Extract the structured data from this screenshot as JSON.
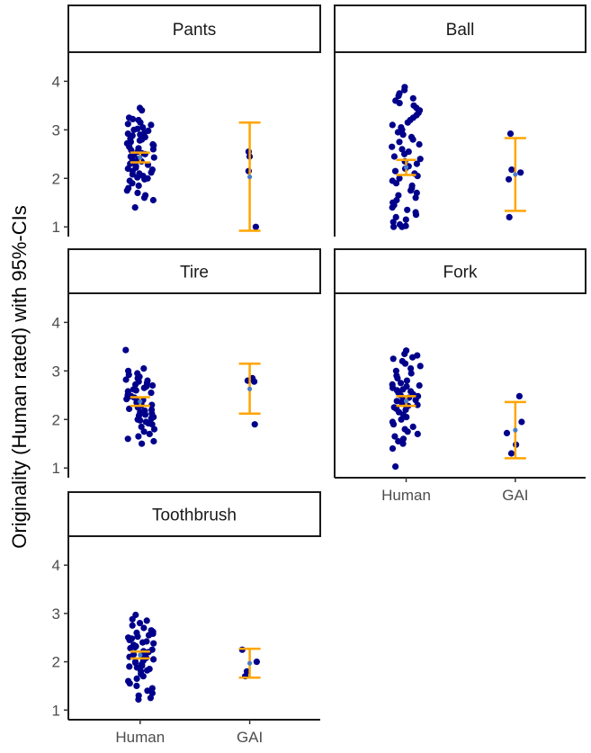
{
  "chart_data": {
    "type": "scatter",
    "ylabel": "Originality (Human rated) with 95%-CIs",
    "xlabel": "",
    "categories": [
      "Human",
      "GAI"
    ],
    "yticks": [
      1,
      2,
      3,
      4
    ],
    "ylim": [
      0.8,
      4.6
    ],
    "colors": {
      "points": "#00008b",
      "ci": "#ffa500",
      "mean": "#4a7ec8"
    },
    "facets": [
      {
        "name": "Pants",
        "groups": [
          {
            "category": "Human",
            "mean": 2.43,
            "ci": [
              2.33,
              2.53
            ],
            "points": [
              3.45,
              3.4,
              3.25,
              3.22,
              3.2,
              3.15,
              3.12,
              3.1,
              3.05,
              3.02,
              3.0,
              2.98,
              2.95,
              2.92,
              2.9,
              2.88,
              2.85,
              2.82,
              2.8,
              2.78,
              2.75,
              2.72,
              2.7,
              2.68,
              2.65,
              2.62,
              2.6,
              2.58,
              2.55,
              2.52,
              2.5,
              2.48,
              2.45,
              2.43,
              2.4,
              2.38,
              2.35,
              2.33,
              2.3,
              2.28,
              2.25,
              2.22,
              2.2,
              2.18,
              2.15,
              2.12,
              2.1,
              2.08,
              2.05,
              2.02,
              2.0,
              1.98,
              1.95,
              1.9,
              1.85,
              1.8,
              1.75,
              1.7,
              1.65,
              1.6,
              1.55,
              1.4
            ]
          },
          {
            "category": "GAI",
            "mean": 2.03,
            "ci": [
              0.92,
              3.15
            ],
            "points": [
              2.55,
              2.45,
              2.15,
              1.0
            ]
          }
        ]
      },
      {
        "name": "Ball",
        "groups": [
          {
            "category": "Human",
            "mean": 2.23,
            "ci": [
              2.07,
              2.38
            ],
            "points": [
              3.88,
              3.82,
              3.75,
              3.7,
              3.65,
              3.6,
              3.55,
              3.5,
              3.45,
              3.4,
              3.35,
              3.3,
              3.25,
              3.2,
              3.15,
              3.1,
              3.05,
              3.0,
              2.95,
              2.9,
              2.85,
              2.8,
              2.75,
              2.7,
              2.65,
              2.6,
              2.55,
              2.5,
              2.45,
              2.4,
              2.35,
              2.3,
              2.25,
              2.2,
              2.15,
              2.1,
              2.05,
              2.0,
              1.95,
              1.9,
              1.85,
              1.8,
              1.75,
              1.7,
              1.65,
              1.6,
              1.55,
              1.5,
              1.45,
              1.4,
              1.35,
              1.3,
              1.25,
              1.2,
              1.15,
              1.1,
              1.05,
              1.02,
              1.0,
              1.0
            ]
          },
          {
            "category": "GAI",
            "mean": 2.08,
            "ci": [
              1.33,
              2.83
            ],
            "points": [
              2.92,
              2.18,
              2.12,
              1.98,
              1.2
            ]
          }
        ]
      },
      {
        "name": "Tire",
        "groups": [
          {
            "category": "Human",
            "mean": 2.37,
            "ci": [
              2.28,
              2.46
            ],
            "points": [
              3.43,
              3.05,
              3.0,
              2.95,
              2.92,
              2.88,
              2.85,
              2.82,
              2.8,
              2.78,
              2.75,
              2.72,
              2.7,
              2.68,
              2.65,
              2.62,
              2.6,
              2.58,
              2.55,
              2.52,
              2.5,
              2.48,
              2.45,
              2.42,
              2.4,
              2.38,
              2.35,
              2.32,
              2.3,
              2.28,
              2.25,
              2.22,
              2.2,
              2.18,
              2.15,
              2.12,
              2.1,
              2.08,
              2.05,
              2.02,
              2.0,
              1.98,
              1.95,
              1.92,
              1.9,
              1.85,
              1.8,
              1.75,
              1.7,
              1.65,
              1.6,
              1.55,
              1.5
            ]
          },
          {
            "category": "GAI",
            "mean": 2.63,
            "ci": [
              2.12,
              3.15
            ],
            "points": [
              2.85,
              2.8,
              2.78,
              1.9
            ]
          }
        ]
      },
      {
        "name": "Fork",
        "groups": [
          {
            "category": "Human",
            "mean": 2.38,
            "ci": [
              2.28,
              2.48
            ],
            "points": [
              3.42,
              3.35,
              3.32,
              3.28,
              3.25,
              3.2,
              3.15,
              3.1,
              3.05,
              3.0,
              2.95,
              2.9,
              2.85,
              2.8,
              2.75,
              2.72,
              2.7,
              2.68,
              2.65,
              2.62,
              2.6,
              2.58,
              2.55,
              2.52,
              2.5,
              2.48,
              2.45,
              2.42,
              2.4,
              2.38,
              2.35,
              2.32,
              2.3,
              2.28,
              2.25,
              2.22,
              2.2,
              2.15,
              2.1,
              2.05,
              2.0,
              1.95,
              1.9,
              1.85,
              1.8,
              1.75,
              1.7,
              1.65,
              1.6,
              1.55,
              1.5,
              1.4,
              1.03
            ]
          },
          {
            "category": "GAI",
            "mean": 1.78,
            "ci": [
              1.2,
              2.36
            ],
            "points": [
              2.48,
              1.95,
              1.72,
              1.48,
              1.3
            ]
          }
        ]
      },
      {
        "name": "Toothbrush",
        "groups": [
          {
            "category": "Human",
            "mean": 2.14,
            "ci": [
              2.07,
              2.21
            ],
            "points": [
              2.97,
              2.88,
              2.85,
              2.8,
              2.75,
              2.7,
              2.65,
              2.62,
              2.6,
              2.58,
              2.55,
              2.52,
              2.5,
              2.48,
              2.45,
              2.42,
              2.4,
              2.38,
              2.35,
              2.32,
              2.3,
              2.28,
              2.25,
              2.22,
              2.2,
              2.18,
              2.15,
              2.12,
              2.1,
              2.08,
              2.05,
              2.02,
              2.0,
              1.98,
              1.95,
              1.92,
              1.9,
              1.88,
              1.85,
              1.82,
              1.8,
              1.75,
              1.7,
              1.65,
              1.6,
              1.55,
              1.5,
              1.45,
              1.4,
              1.35,
              1.3,
              1.25,
              1.22
            ]
          },
          {
            "category": "GAI",
            "mean": 1.97,
            "ci": [
              1.67,
              2.27
            ],
            "points": [
              2.25,
              2.0,
              1.8,
              1.7
            ]
          }
        ]
      }
    ]
  }
}
